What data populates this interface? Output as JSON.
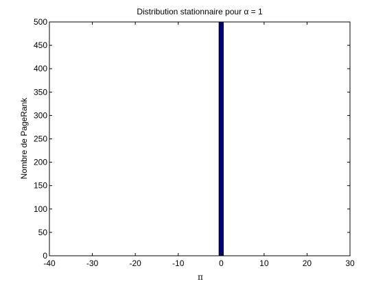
{
  "chart_data": {
    "type": "bar",
    "title": "Distribution stationnaire pour α = 1",
    "xlabel": "π",
    "ylabel": "Nombre de PageRank",
    "xlim": [
      -40,
      30
    ],
    "ylim": [
      0,
      500
    ],
    "xticks": [
      -40,
      -30,
      -20,
      -10,
      0,
      10,
      20,
      30
    ],
    "yticks": [
      0,
      50,
      100,
      150,
      200,
      250,
      300,
      350,
      400,
      450,
      500
    ],
    "bars": [
      {
        "x": 0,
        "value": 500,
        "width": 1
      }
    ],
    "bar_color": "#00007f",
    "edge_color": "#000000",
    "grid": false,
    "legend": "none"
  }
}
